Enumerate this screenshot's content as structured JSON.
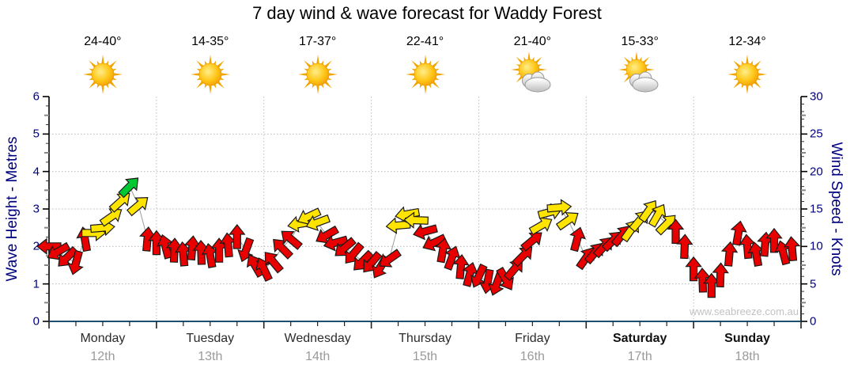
{
  "chart_data": {
    "type": "scatter",
    "subtype": "wind-arrow-timeseries",
    "title": "7 day wind & wave forecast for Waddy Forest",
    "watermark": "www.seabreeze.com.au",
    "left_axis": {
      "label": "Wave Height - Metres",
      "min": 0,
      "max": 6,
      "ticks": [
        0,
        1,
        2,
        3,
        4,
        5,
        6
      ]
    },
    "right_axis": {
      "label": "Wind Speed - Knots",
      "min": 0,
      "max": 30,
      "ticks": [
        0,
        5,
        10,
        15,
        20,
        25,
        30
      ]
    },
    "x_axis": {
      "minor_tick_hours": 6,
      "gridlines": "day-boundaries-dotted"
    },
    "grid": "horizontal-dotted-at-1-to-5m",
    "colors": {
      "red": "#e80000",
      "yellow": "#ffe400",
      "green": "#00c832",
      "arrow_outline": "#1a1a1a",
      "axis_text_navy": "#000080",
      "baseline_blue": "#1d4f72",
      "gridline": "#bbbbbb",
      "connector": "#9a9a9a"
    },
    "units": {
      "speed": "knots",
      "scale_note": "1 metre wave axis = 5 knots wind axis"
    },
    "days": [
      {
        "name": "Monday",
        "date": "12th",
        "temp": "24-40°",
        "icon": "sunny",
        "bold": false
      },
      {
        "name": "Tuesday",
        "date": "13th",
        "temp": "14-35°",
        "icon": "sunny",
        "bold": false
      },
      {
        "name": "Wednesday",
        "date": "14th",
        "temp": "17-37°",
        "icon": "sunny",
        "bold": false
      },
      {
        "name": "Thursday",
        "date": "15th",
        "temp": "22-41°",
        "icon": "sunny",
        "bold": false
      },
      {
        "name": "Friday",
        "date": "16th",
        "temp": "21-40°",
        "icon": "partly-cloudy",
        "bold": false
      },
      {
        "name": "Saturday",
        "date": "17th",
        "temp": "15-33°",
        "icon": "partly-cloudy",
        "bold": true
      },
      {
        "name": "Sunday",
        "date": "18th",
        "temp": "12-34°",
        "icon": "sunny",
        "bold": true
      }
    ],
    "points_format": [
      "day_index",
      "hour",
      "knots",
      "direction_deg_ccw_from_east",
      "color_code r|y|g"
    ],
    "points": [
      [
        0,
        0,
        10,
        180,
        "r"
      ],
      [
        0,
        2,
        9.3,
        210,
        "r"
      ],
      [
        0,
        4,
        8.5,
        225,
        "r"
      ],
      [
        0,
        6,
        7.8,
        255,
        "r"
      ],
      [
        0,
        8,
        11,
        100,
        "r"
      ],
      [
        0,
        10,
        11.8,
        0,
        "y"
      ],
      [
        0,
        12,
        12.5,
        5,
        "y"
      ],
      [
        0,
        14,
        14,
        35,
        "y"
      ],
      [
        0,
        16,
        16,
        42,
        "y"
      ],
      [
        0,
        18,
        18,
        45,
        "g"
      ],
      [
        0,
        20,
        15.5,
        40,
        "y"
      ],
      [
        0,
        22,
        11,
        85,
        "r"
      ],
      [
        1,
        0,
        10.5,
        90,
        "r"
      ],
      [
        1,
        2,
        10,
        105,
        "r"
      ],
      [
        1,
        4,
        9.5,
        88,
        "r"
      ],
      [
        1,
        6,
        9,
        95,
        "r"
      ],
      [
        1,
        8,
        9.8,
        85,
        "r"
      ],
      [
        1,
        10,
        9.2,
        92,
        "r"
      ],
      [
        1,
        12,
        8.8,
        100,
        "r"
      ],
      [
        1,
        14,
        9.5,
        90,
        "r"
      ],
      [
        1,
        16,
        10.2,
        95,
        "r"
      ],
      [
        1,
        18,
        11.3,
        90,
        "r"
      ],
      [
        1,
        20,
        9.5,
        250,
        "r"
      ],
      [
        1,
        22,
        7.5,
        120,
        "r"
      ],
      [
        2,
        0,
        7,
        115,
        "r"
      ],
      [
        2,
        2,
        8,
        130,
        "r"
      ],
      [
        2,
        4,
        9.8,
        135,
        "r"
      ],
      [
        2,
        6,
        11,
        140,
        "r"
      ],
      [
        2,
        8,
        13,
        190,
        "y"
      ],
      [
        2,
        10,
        14,
        205,
        "y"
      ],
      [
        2,
        12,
        13.2,
        200,
        "y"
      ],
      [
        2,
        14,
        11.5,
        210,
        "r"
      ],
      [
        2,
        16,
        10.5,
        195,
        "r"
      ],
      [
        2,
        18,
        9.8,
        220,
        "r"
      ],
      [
        2,
        20,
        9,
        230,
        "r"
      ],
      [
        2,
        22,
        8,
        225,
        "r"
      ],
      [
        3,
        0,
        7.8,
        230,
        "r"
      ],
      [
        3,
        2,
        7.2,
        240,
        "r"
      ],
      [
        3,
        4,
        8.3,
        215,
        "r"
      ],
      [
        3,
        6,
        12.8,
        185,
        "y"
      ],
      [
        3,
        8,
        14.3,
        190,
        "y"
      ],
      [
        3,
        10,
        13.5,
        178,
        "y"
      ],
      [
        3,
        12,
        12,
        195,
        "r"
      ],
      [
        3,
        14,
        10.5,
        205,
        "r"
      ],
      [
        3,
        16,
        9.5,
        80,
        "r"
      ],
      [
        3,
        18,
        8.5,
        70,
        "r"
      ],
      [
        3,
        20,
        7.3,
        85,
        "r"
      ],
      [
        3,
        22,
        6.3,
        75,
        "r"
      ],
      [
        4,
        0,
        6,
        245,
        "r"
      ],
      [
        4,
        2,
        5.3,
        260,
        "r"
      ],
      [
        4,
        4,
        5,
        250,
        "r"
      ],
      [
        4,
        6,
        5.6,
        300,
        "r"
      ],
      [
        4,
        8,
        7,
        50,
        "r"
      ],
      [
        4,
        10,
        8.8,
        45,
        "r"
      ],
      [
        4,
        12,
        10.8,
        40,
        "r"
      ],
      [
        4,
        14,
        12.8,
        30,
        "y"
      ],
      [
        4,
        16,
        14.6,
        15,
        "y"
      ],
      [
        4,
        18,
        15.2,
        5,
        "y"
      ],
      [
        4,
        20,
        13.5,
        35,
        "y"
      ],
      [
        4,
        22,
        11,
        75,
        "r"
      ],
      [
        5,
        0,
        8.5,
        55,
        "r"
      ],
      [
        5,
        2,
        9.2,
        50,
        "r"
      ],
      [
        5,
        4,
        10,
        48,
        "r"
      ],
      [
        5,
        6,
        10.8,
        45,
        "r"
      ],
      [
        5,
        8,
        11.5,
        50,
        "r"
      ],
      [
        5,
        10,
        12.2,
        55,
        "y"
      ],
      [
        5,
        12,
        13.5,
        50,
        "y"
      ],
      [
        5,
        14,
        14.8,
        55,
        "y"
      ],
      [
        5,
        16,
        14.2,
        60,
        "y"
      ],
      [
        5,
        18,
        13,
        45,
        "y"
      ],
      [
        5,
        20,
        12,
        90,
        "r"
      ],
      [
        5,
        22,
        10,
        88,
        "r"
      ],
      [
        6,
        0,
        7,
        90,
        "r"
      ],
      [
        6,
        2,
        5.5,
        92,
        "r"
      ],
      [
        6,
        4,
        4.8,
        90,
        "r"
      ],
      [
        6,
        6,
        6.2,
        88,
        "r"
      ],
      [
        6,
        8,
        9,
        85,
        "r"
      ],
      [
        6,
        10,
        11.8,
        80,
        "r"
      ],
      [
        6,
        12,
        10,
        95,
        "r"
      ],
      [
        6,
        14,
        9,
        100,
        "r"
      ],
      [
        6,
        16,
        10.3,
        85,
        "r"
      ],
      [
        6,
        18,
        10.8,
        90,
        "r"
      ],
      [
        6,
        20,
        9.2,
        105,
        "r"
      ],
      [
        6,
        22,
        9.7,
        95,
        "r"
      ]
    ]
  }
}
